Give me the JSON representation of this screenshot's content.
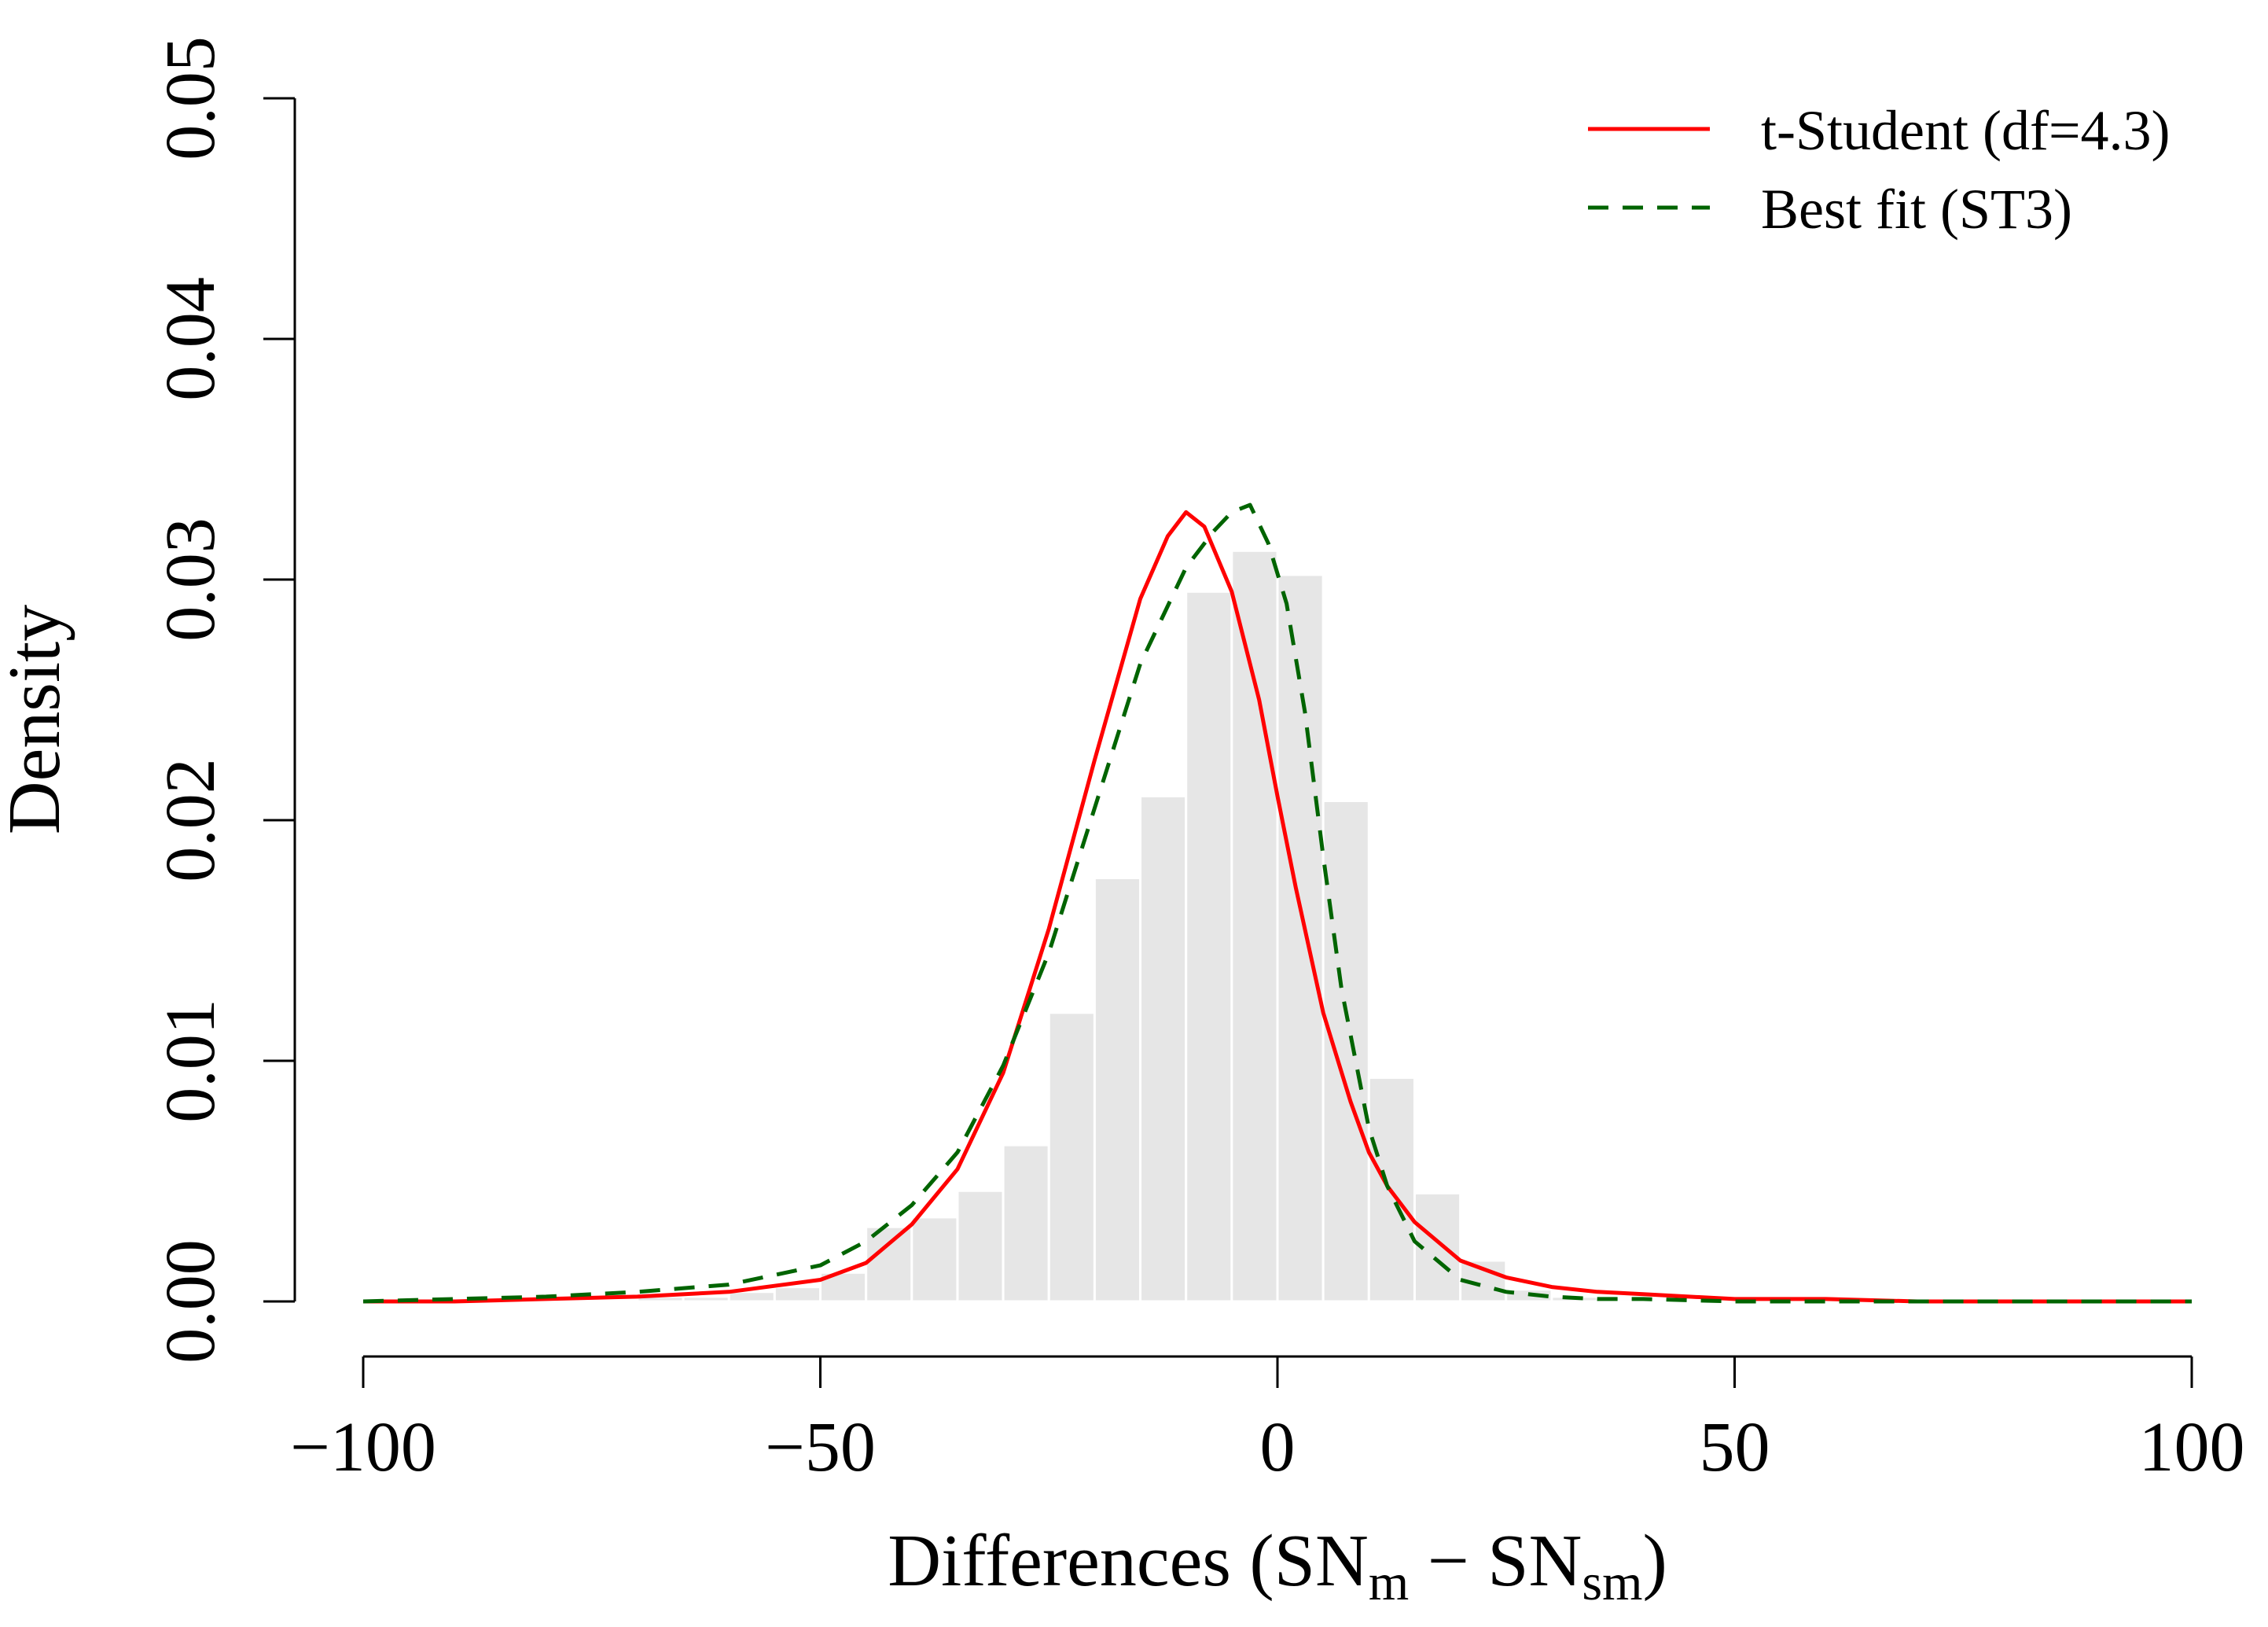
{
  "chart_data": {
    "type": "histogram",
    "title": "",
    "xlabel": {
      "prefix": "Differences (SN",
      "sub1": "m",
      "middle": " − SN",
      "sub2": "sm",
      "suffix": ")"
    },
    "ylabel": "Density",
    "xlim": [
      -100,
      100
    ],
    "ylim": [
      0,
      0.05
    ],
    "x_ticks": [
      -100,
      -50,
      0,
      50,
      100
    ],
    "x_tick_labels": [
      "−100",
      "−50",
      "0",
      "50",
      "100"
    ],
    "y_ticks": [
      0,
      0.01,
      0.02,
      0.03,
      0.04,
      0.05
    ],
    "y_tick_labels": [
      "0.00",
      "0.01",
      "0.02",
      "0.03",
      "0.04",
      "0.05"
    ],
    "grid": false,
    "legend_position": "top-right",
    "histogram": {
      "bin_width": 5,
      "color": "#e6e6e6",
      "bins": [
        {
          "start": -100,
          "value": 0.0
        },
        {
          "start": -95,
          "value": 0.0
        },
        {
          "start": -90,
          "value": 0.0
        },
        {
          "start": -85,
          "value": 0.0
        },
        {
          "start": -80,
          "value": 0.0001
        },
        {
          "start": -75,
          "value": 0.0001
        },
        {
          "start": -70,
          "value": 0.0002
        },
        {
          "start": -65,
          "value": 0.0002
        },
        {
          "start": -60,
          "value": 0.0004
        },
        {
          "start": -55,
          "value": 0.0006
        },
        {
          "start": -50,
          "value": 0.0012
        },
        {
          "start": -45,
          "value": 0.0031
        },
        {
          "start": -40,
          "value": 0.0035
        },
        {
          "start": -35,
          "value": 0.0046
        },
        {
          "start": -30,
          "value": 0.0065
        },
        {
          "start": -25,
          "value": 0.012
        },
        {
          "start": -20,
          "value": 0.0176
        },
        {
          "start": -15,
          "value": 0.021
        },
        {
          "start": -10,
          "value": 0.0295
        },
        {
          "start": -5,
          "value": 0.0312
        },
        {
          "start": 0,
          "value": 0.0302
        },
        {
          "start": 5,
          "value": 0.0208
        },
        {
          "start": 10,
          "value": 0.0093
        },
        {
          "start": 15,
          "value": 0.0045
        },
        {
          "start": 20,
          "value": 0.0017
        },
        {
          "start": 25,
          "value": 0.0005
        },
        {
          "start": 30,
          "value": 0.0002
        },
        {
          "start": 35,
          "value": 0.0001
        },
        {
          "start": 40,
          "value": 0.0001
        },
        {
          "start": 45,
          "value": 0.0
        },
        {
          "start": 50,
          "value": 0.0
        }
      ]
    },
    "series": [
      {
        "name": "t-Student (df=4.3)",
        "color": "#ff0000",
        "style": "solid",
        "x": [
          -100,
          -90,
          -80,
          -70,
          -60,
          -50,
          -45,
          -40,
          -35,
          -30,
          -25,
          -20,
          -15,
          -12,
          -10,
          -8,
          -5,
          -2,
          0,
          2,
          5,
          8,
          10,
          12,
          15,
          20,
          25,
          30,
          35,
          40,
          50,
          60,
          70,
          80,
          90,
          100
        ],
        "values": [
          0.0,
          0.0,
          0.0001,
          0.0002,
          0.0004,
          0.0009,
          0.0016,
          0.0032,
          0.0055,
          0.0095,
          0.0155,
          0.0225,
          0.0292,
          0.0318,
          0.0328,
          0.0322,
          0.0295,
          0.025,
          0.021,
          0.0172,
          0.012,
          0.0083,
          0.0062,
          0.0048,
          0.0033,
          0.0017,
          0.001,
          0.0006,
          0.0004,
          0.0003,
          0.0001,
          0.0001,
          0.0,
          0.0,
          0.0,
          0.0
        ]
      },
      {
        "name": "Best fit (ST3)",
        "color": "#006400",
        "style": "dashed",
        "x": [
          -100,
          -90,
          -80,
          -70,
          -60,
          -50,
          -45,
          -40,
          -35,
          -30,
          -25,
          -20,
          -15,
          -10,
          -7,
          -5,
          -3,
          -1,
          1,
          3,
          5,
          7,
          10,
          12,
          15,
          20,
          25,
          30,
          35,
          40,
          50,
          60,
          70,
          80,
          90,
          100
        ],
        "values": [
          0.0,
          0.0001,
          0.0002,
          0.0004,
          0.0007,
          0.0015,
          0.0025,
          0.004,
          0.0062,
          0.0098,
          0.0145,
          0.0205,
          0.0265,
          0.0305,
          0.032,
          0.0328,
          0.0331,
          0.0315,
          0.029,
          0.0245,
          0.0185,
          0.013,
          0.0072,
          0.0048,
          0.0025,
          0.0009,
          0.0004,
          0.0002,
          0.0001,
          0.0001,
          0.0,
          0.0,
          0.0,
          0.0,
          0.0,
          0.0
        ]
      }
    ]
  }
}
